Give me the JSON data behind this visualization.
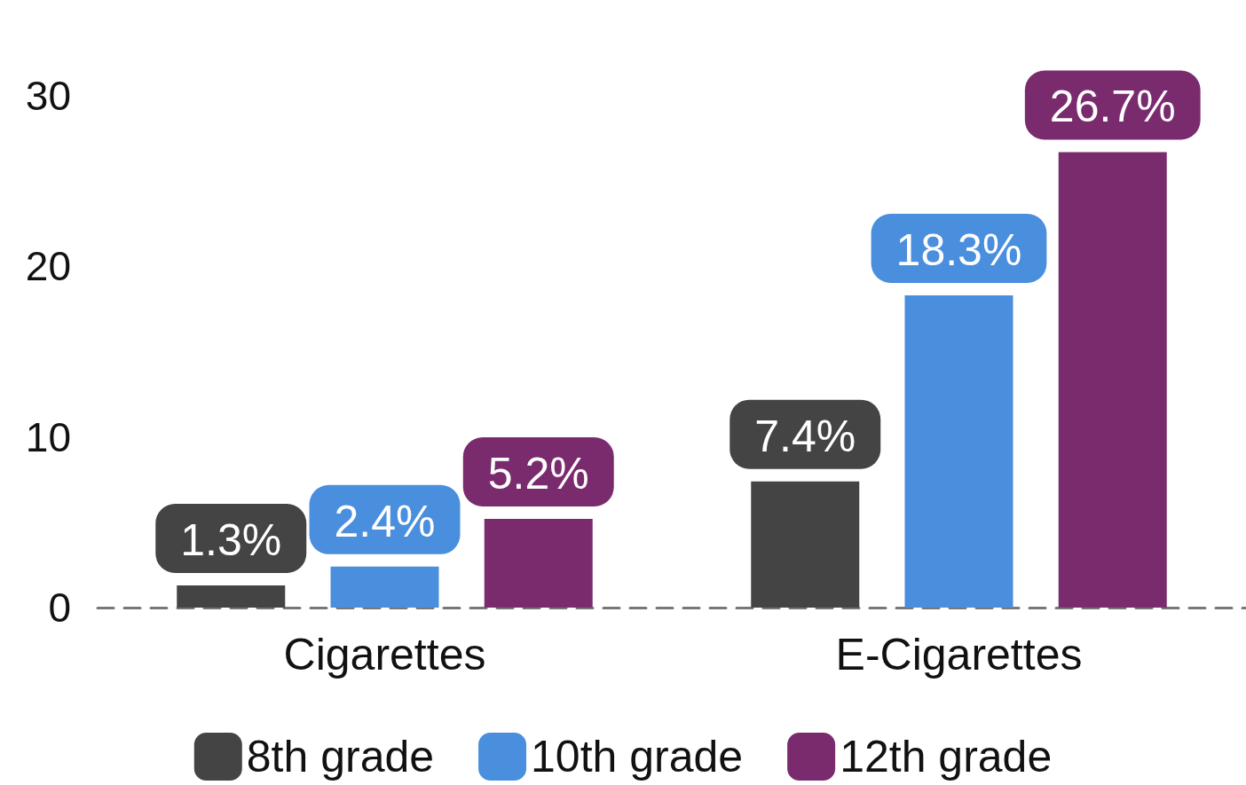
{
  "chart_data": {
    "type": "bar",
    "categories": [
      "Cigarettes",
      "E-Cigarettes"
    ],
    "series": [
      {
        "name": "8th grade",
        "color": "#444444",
        "values": [
          1.3,
          7.4
        ],
        "value_labels": [
          "1.3%",
          "7.4%"
        ]
      },
      {
        "name": "10th grade",
        "color": "#4a8ede",
        "values": [
          2.4,
          18.3
        ],
        "value_labels": [
          "2.4%",
          "18.3%"
        ]
      },
      {
        "name": "12th grade",
        "color": "#7a2b6e",
        "values": [
          5.2,
          26.7
        ],
        "value_labels": [
          "5.2%",
          "26.7%"
        ]
      }
    ],
    "ylim": [
      0,
      30
    ],
    "yticks": [
      0,
      10,
      20,
      30
    ],
    "grid": false,
    "legend": "bottom"
  }
}
